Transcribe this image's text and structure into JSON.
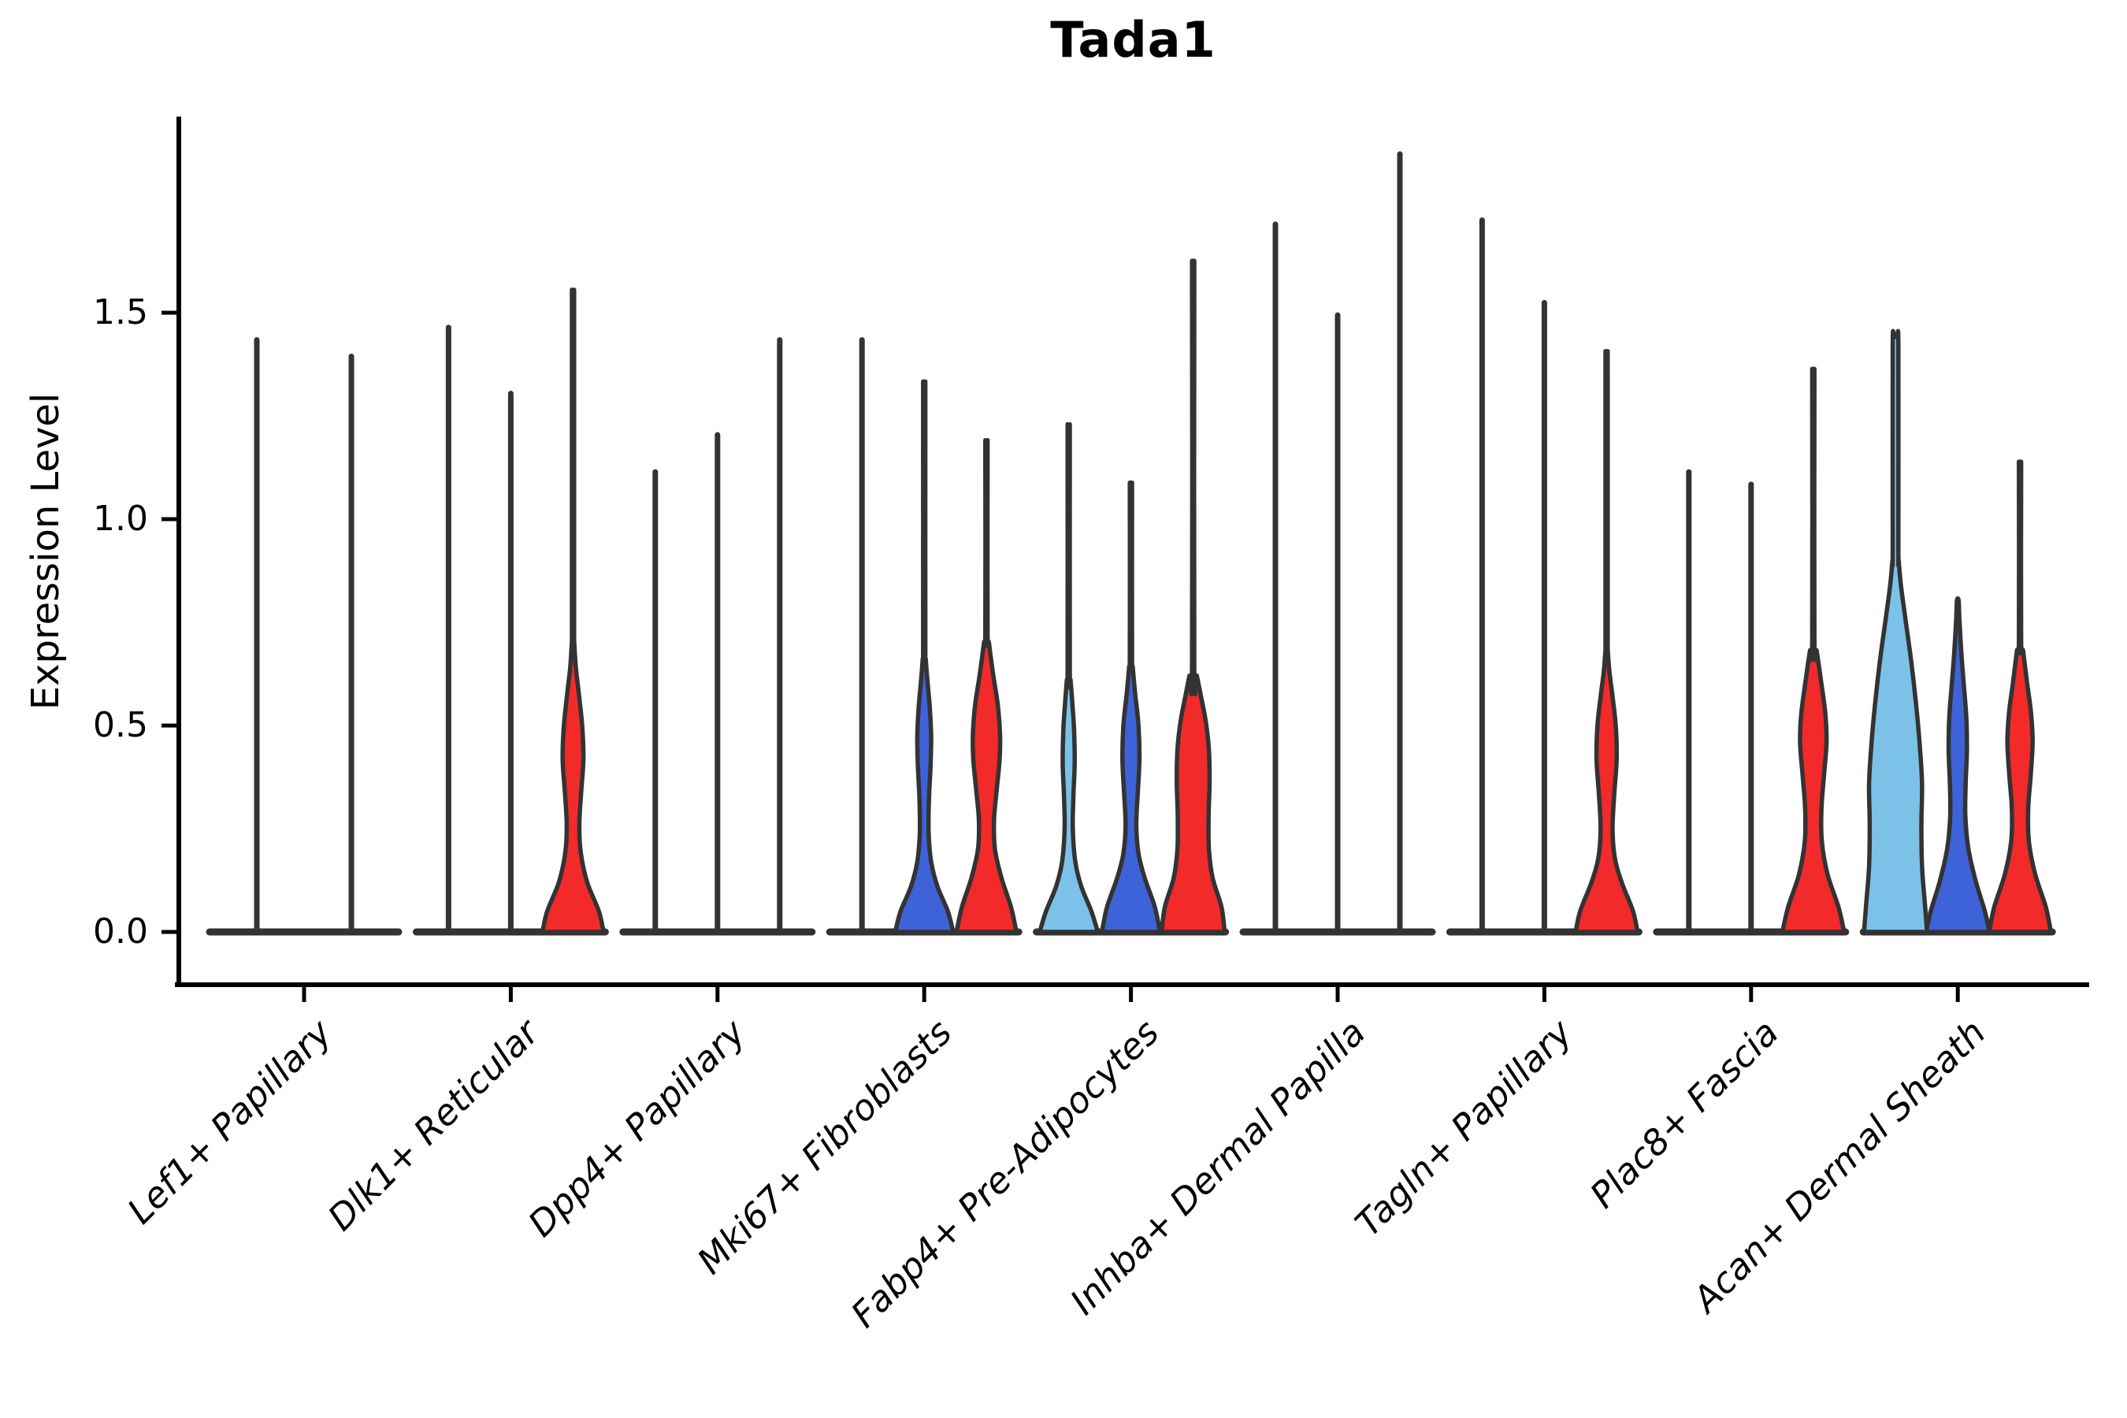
{
  "title": "Tada1",
  "ylabel": "Expression Level",
  "colors": {
    "outline": "#333333",
    "axis": "#000000",
    "text": "#000000",
    "red": "#F22A2A",
    "blue": "#3E63D8",
    "lightblue": "#7CC2E8",
    "background": "#ffffff"
  },
  "chart_data": {
    "type": "violin",
    "title": "Tada1",
    "xlabel": "",
    "ylabel": "Expression Level",
    "ylim": [
      0,
      2.05
    ],
    "yticks": [
      0.0,
      0.5,
      1.0,
      1.5
    ],
    "ytick_labels": [
      "0.0",
      "0.5",
      "1.0",
      "1.5"
    ],
    "grid": false,
    "legend_position": "none",
    "split_fill_colors": {
      "lightblue": "#7CC2E8",
      "blue": "#3E63D8",
      "red": "#F22A2A",
      "none": "none"
    },
    "categories": [
      "Lef1+ Papillary",
      "Dlk1+ Reticular",
      "Dpp4+ Papillary",
      "Mki67+ Fibroblasts",
      "Fabp4+ Pre-Adipocytes",
      "Inhba+ Dermal Papilla",
      "Tagln+ Papillary",
      "Plac8+ Fascia",
      "Acan+ Dermal Sheath"
    ],
    "groups": [
      {
        "category": "Lef1+ Papillary",
        "violins": [
          {
            "fill": "none",
            "max": 1.44
          },
          {
            "fill": "none",
            "max": 1.4
          }
        ]
      },
      {
        "category": "Dlk1+ Reticular",
        "violins": [
          {
            "fill": "none",
            "max": 1.47
          },
          {
            "fill": "none",
            "max": 1.31
          },
          {
            "fill": "red",
            "max": 1.52,
            "profile": [
              [
                0,
                0.97
              ],
              [
                0.05,
                0.82
              ],
              [
                0.12,
                0.45
              ],
              [
                0.19,
                0.25
              ],
              [
                0.26,
                0.2
              ],
              [
                0.34,
                0.26
              ],
              [
                0.42,
                0.33
              ],
              [
                0.5,
                0.29
              ],
              [
                0.58,
                0.18
              ],
              [
                0.64,
                0.09
              ],
              [
                0.7,
                0.04
              ]
            ]
          }
        ]
      },
      {
        "category": "Dpp4+ Papillary",
        "violins": [
          {
            "fill": "none",
            "max": 1.12
          },
          {
            "fill": "none",
            "max": 1.21
          },
          {
            "fill": "none",
            "max": 1.44
          }
        ]
      },
      {
        "category": "Mki67+ Fibroblasts",
        "violins": [
          {
            "fill": "none",
            "max": 1.44
          },
          {
            "fill": "blue",
            "max": 1.31,
            "profile": [
              [
                0,
                0.92
              ],
              [
                0.05,
                0.75
              ],
              [
                0.11,
                0.42
              ],
              [
                0.17,
                0.22
              ],
              [
                0.24,
                0.14
              ],
              [
                0.32,
                0.15
              ],
              [
                0.4,
                0.2
              ],
              [
                0.47,
                0.22
              ],
              [
                0.54,
                0.18
              ],
              [
                0.61,
                0.1
              ],
              [
                0.66,
                0.05
              ]
            ]
          },
          {
            "fill": "red",
            "max": 1.18,
            "profile": [
              [
                0,
                0.95
              ],
              [
                0.06,
                0.78
              ],
              [
                0.13,
                0.48
              ],
              [
                0.2,
                0.27
              ],
              [
                0.27,
                0.24
              ],
              [
                0.34,
                0.32
              ],
              [
                0.42,
                0.42
              ],
              [
                0.48,
                0.43
              ],
              [
                0.55,
                0.36
              ],
              [
                0.62,
                0.22
              ],
              [
                0.7,
                0.08
              ]
            ]
          }
        ]
      },
      {
        "category": "Fabp4+ Pre-Adipocytes",
        "violins": [
          {
            "fill": "lightblue",
            "max": 1.21,
            "profile": [
              [
                0,
                0.92
              ],
              [
                0.05,
                0.72
              ],
              [
                0.11,
                0.4
              ],
              [
                0.17,
                0.21
              ],
              [
                0.25,
                0.13
              ],
              [
                0.33,
                0.15
              ],
              [
                0.41,
                0.19
              ],
              [
                0.49,
                0.17
              ],
              [
                0.56,
                0.11
              ],
              [
                0.61,
                0.06
              ]
            ]
          },
          {
            "fill": "blue",
            "max": 1.08,
            "profile": [
              [
                0,
                0.92
              ],
              [
                0.06,
                0.76
              ],
              [
                0.13,
                0.44
              ],
              [
                0.19,
                0.24
              ],
              [
                0.26,
                0.17
              ],
              [
                0.34,
                0.22
              ],
              [
                0.42,
                0.27
              ],
              [
                0.5,
                0.24
              ],
              [
                0.58,
                0.13
              ],
              [
                0.64,
                0.06
              ]
            ]
          },
          {
            "fill": "red",
            "max": 1.58,
            "profile": [
              [
                0,
                1.0
              ],
              [
                0.06,
                0.9
              ],
              [
                0.13,
                0.62
              ],
              [
                0.2,
                0.5
              ],
              [
                0.28,
                0.49
              ],
              [
                0.36,
                0.52
              ],
              [
                0.44,
                0.5
              ],
              [
                0.51,
                0.4
              ],
              [
                0.57,
                0.25
              ],
              [
                0.62,
                0.12
              ]
            ]
          }
        ]
      },
      {
        "category": "Inhba+ Dermal Papilla",
        "violins": [
          {
            "fill": "none",
            "max": 1.72
          },
          {
            "fill": "none",
            "max": 1.5
          },
          {
            "fill": "none",
            "max": 1.89
          }
        ]
      },
      {
        "category": "Tagln+ Papillary",
        "violins": [
          {
            "fill": "none",
            "max": 1.73
          },
          {
            "fill": "none",
            "max": 1.53
          },
          {
            "fill": "red",
            "max": 1.38,
            "profile": [
              [
                0,
                0.98
              ],
              [
                0.05,
                0.84
              ],
              [
                0.12,
                0.48
              ],
              [
                0.18,
                0.26
              ],
              [
                0.25,
                0.19
              ],
              [
                0.33,
                0.24
              ],
              [
                0.42,
                0.32
              ],
              [
                0.5,
                0.29
              ],
              [
                0.57,
                0.19
              ],
              [
                0.63,
                0.09
              ],
              [
                0.68,
                0.04
              ]
            ]
          }
        ]
      },
      {
        "category": "Plac8+ Fascia",
        "violins": [
          {
            "fill": "none",
            "max": 1.12
          },
          {
            "fill": "none",
            "max": 1.09
          },
          {
            "fill": "red",
            "max": 1.34,
            "profile": [
              [
                0,
                0.98
              ],
              [
                0.06,
                0.8
              ],
              [
                0.14,
                0.45
              ],
              [
                0.22,
                0.27
              ],
              [
                0.3,
                0.26
              ],
              [
                0.38,
                0.34
              ],
              [
                0.46,
                0.42
              ],
              [
                0.53,
                0.38
              ],
              [
                0.6,
                0.26
              ],
              [
                0.68,
                0.11
              ]
            ]
          }
        ]
      },
      {
        "category": "Acan+ Dermal Sheath",
        "violins": [
          {
            "fill": "lightblue",
            "max": 1.44,
            "tail_w": 0.09,
            "profile": [
              [
                0,
                1.0
              ],
              [
                0.07,
                0.93
              ],
              [
                0.16,
                0.84
              ],
              [
                0.26,
                0.82
              ],
              [
                0.36,
                0.84
              ],
              [
                0.46,
                0.76
              ],
              [
                0.56,
                0.64
              ],
              [
                0.66,
                0.49
              ],
              [
                0.76,
                0.31
              ],
              [
                0.84,
                0.17
              ],
              [
                0.9,
                0.1
              ]
            ]
          },
          {
            "fill": "blue",
            "max": 0.8,
            "tail_w": 0.02,
            "profile": [
              [
                0,
                1.0
              ],
              [
                0.05,
                0.86
              ],
              [
                0.12,
                0.58
              ],
              [
                0.2,
                0.34
              ],
              [
                0.28,
                0.24
              ],
              [
                0.36,
                0.25
              ],
              [
                0.44,
                0.29
              ],
              [
                0.52,
                0.27
              ],
              [
                0.6,
                0.19
              ],
              [
                0.68,
                0.11
              ],
              [
                0.76,
                0.05
              ]
            ]
          },
          {
            "fill": "red",
            "max": 1.13,
            "profile": [
              [
                0,
                0.98
              ],
              [
                0.06,
                0.82
              ],
              [
                0.14,
                0.48
              ],
              [
                0.22,
                0.28
              ],
              [
                0.3,
                0.26
              ],
              [
                0.38,
                0.34
              ],
              [
                0.46,
                0.4
              ],
              [
                0.53,
                0.35
              ],
              [
                0.6,
                0.23
              ],
              [
                0.68,
                0.1
              ]
            ]
          }
        ]
      }
    ]
  }
}
